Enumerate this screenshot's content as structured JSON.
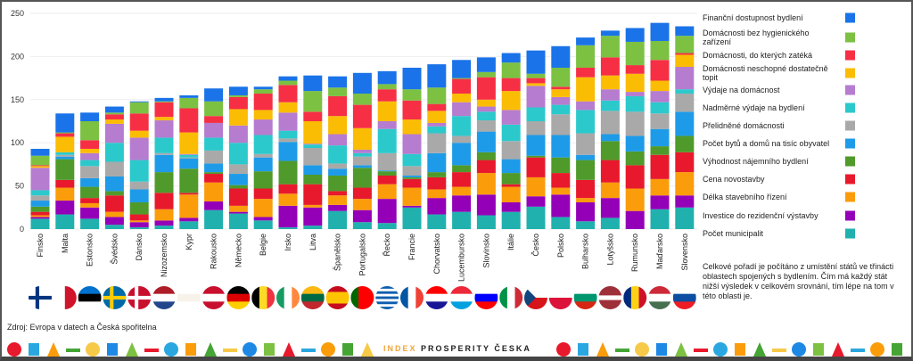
{
  "chart_data": {
    "type": "bar",
    "stacked": true,
    "title": "",
    "xlabel": "",
    "ylabel": "",
    "ylim": [
      0,
      250
    ],
    "yticks": [
      0,
      50,
      100,
      150,
      200,
      250
    ],
    "grid": true,
    "legend_position": "right",
    "categories": [
      "Finsko",
      "Malta",
      "Estonsko",
      "Švédsko",
      "Dánsko",
      "Nizozemsko",
      "Kypr",
      "Rakousko",
      "Německo",
      "Belgie",
      "Irsko",
      "Litva",
      "Španělsko",
      "Portugalsko",
      "Řecko",
      "Francie",
      "Chorvatsko",
      "Lucembursko",
      "Slovinsko",
      "Itálie",
      "Česko",
      "Polsko",
      "Bulharsko",
      "Lotyšsko",
      "Rumunsko",
      "Maďarsko",
      "Slovensko"
    ],
    "series": [
      {
        "name": "Počet municipalit",
        "color": "#20b1ae",
        "values": [
          12,
          17,
          12,
          5,
          2,
          4,
          9,
          22,
          18,
          10,
          2,
          4,
          21,
          8,
          7,
          25,
          17,
          20,
          16,
          20,
          26,
          14,
          9,
          13,
          0,
          23,
          25
        ]
      },
      {
        "name": "Investice do rezidenční výstavby",
        "color": "#9400b8",
        "values": [
          2,
          16,
          13,
          9,
          6,
          6,
          4,
          10,
          2,
          4,
          25,
          21,
          7,
          14,
          28,
          2,
          19,
          19,
          24,
          11,
          12,
          26,
          22,
          23,
          21,
          16,
          14
        ]
      },
      {
        "name": "Délka stavebního řízení",
        "color": "#fb9c0b",
        "values": [
          2,
          15,
          5,
          6,
          2,
          13,
          27,
          22,
          7,
          21,
          14,
          3,
          11,
          13,
          17,
          21,
          10,
          10,
          25,
          18,
          22,
          8,
          5,
          18,
          26,
          19,
          27
        ]
      },
      {
        "name": "Cena novostavby",
        "color": "#e8192c",
        "values": [
          4,
          9,
          6,
          19,
          7,
          19,
          2,
          10,
          20,
          12,
          11,
          24,
          5,
          13,
          10,
          10,
          14,
          17,
          15,
          3,
          23,
          17,
          21,
          26,
          27,
          28,
          23
        ]
      },
      {
        "name": "Výhodnost nájemního bydlení",
        "color": "#4f9a2a",
        "values": [
          6,
          24,
          13,
          5,
          14,
          24,
          28,
          2,
          4,
          20,
          27,
          11,
          18,
          23,
          5,
          2,
          6,
          8,
          9,
          13,
          2,
          18,
          23,
          22,
          16,
          10,
          19
        ]
      },
      {
        "name": "Počet bytů a domů na tisíc obyvatel",
        "color": "#1e9be8",
        "values": [
          7,
          3,
          10,
          17,
          15,
          20,
          12,
          10,
          13,
          16,
          22,
          11,
          8,
          3,
          1,
          2,
          22,
          26,
          24,
          16,
          24,
          26,
          6,
          8,
          18,
          20,
          28
        ]
      },
      {
        "name": "Přelidněné domácnosti",
        "color": "#a9a9a9",
        "values": [
          6,
          2,
          14,
          17,
          9,
          2,
          1,
          15,
          11,
          4,
          4,
          20,
          6,
          10,
          20,
          11,
          23,
          8,
          13,
          21,
          16,
          24,
          25,
          27,
          28,
          18,
          21
        ]
      },
      {
        "name": "Nadměrné výdaje na bydlení",
        "color": "#2bc9cc",
        "values": [
          6,
          3,
          7,
          22,
          25,
          18,
          3,
          15,
          25,
          22,
          9,
          4,
          21,
          4,
          28,
          14,
          8,
          23,
          10,
          19,
          16,
          11,
          27,
          12,
          18,
          13,
          5
        ]
      },
      {
        "name": "Výdaje na domácnost",
        "color": "#b57cd0",
        "values": [
          26,
          0,
          8,
          22,
          26,
          20,
          1,
          17,
          20,
          18,
          21,
          1,
          13,
          4,
          9,
          23,
          4,
          16,
          6,
          17,
          25,
          9,
          10,
          13,
          5,
          13,
          26
        ]
      },
      {
        "name": "Domácnosti neschopné dostatečně topit",
        "color": "#fbbc04",
        "values": [
          2,
          18,
          5,
          5,
          8,
          4,
          25,
          0,
          19,
          11,
          12,
          26,
          21,
          25,
          23,
          17,
          14,
          10,
          8,
          22,
          3,
          9,
          28,
          16,
          21,
          12,
          14
        ]
      },
      {
        "name": "Domácnosti, do kterých zatéká",
        "color": "#f62f45",
        "values": [
          1,
          4,
          10,
          6,
          20,
          17,
          28,
          8,
          14,
          19,
          20,
          11,
          23,
          27,
          14,
          22,
          8,
          17,
          26,
          15,
          6,
          3,
          11,
          21,
          10,
          24,
          2
        ]
      },
      {
        "name": "Domácnosti bez hygienického zařízení",
        "color": "#7cc142",
        "values": [
          11,
          1,
          22,
          2,
          13,
          1,
          12,
          17,
          2,
          5,
          5,
          24,
          10,
          13,
          6,
          13,
          19,
          1,
          6,
          18,
          5,
          22,
          26,
          25,
          27,
          22,
          20
        ]
      },
      {
        "name": "Finanční dostupnost bydlení",
        "color": "#1a73e8",
        "values": [
          8,
          22,
          10,
          7,
          1,
          4,
          3,
          15,
          10,
          3,
          5,
          18,
          13,
          24,
          15,
          25,
          27,
          21,
          17,
          11,
          27,
          25,
          9,
          6,
          16,
          21,
          11
        ]
      }
    ]
  },
  "flags": [
    {
      "type": "cross",
      "colors": [
        "#ffffff",
        "#003580"
      ]
    },
    {
      "type": "v",
      "colors": [
        "#ffffff",
        "#cf142b"
      ]
    },
    {
      "type": "h",
      "colors": [
        "#0072ce",
        "#000000",
        "#ffffff"
      ]
    },
    {
      "type": "cross",
      "colors": [
        "#006aa7",
        "#fecc00"
      ]
    },
    {
      "type": "cross",
      "colors": [
        "#c8102e",
        "#ffffff"
      ]
    },
    {
      "type": "h",
      "colors": [
        "#ae1c28",
        "#ffffff",
        "#21468b"
      ]
    },
    {
      "type": "h",
      "colors": [
        "#ffffff",
        "#f7f3ea",
        "#ffffff"
      ]
    },
    {
      "type": "h",
      "colors": [
        "#c8102e",
        "#ffffff",
        "#c8102e"
      ]
    },
    {
      "type": "h",
      "colors": [
        "#000000",
        "#dd0000",
        "#ffce00"
      ]
    },
    {
      "type": "v",
      "colors": [
        "#000000",
        "#fdda24",
        "#ef3340"
      ]
    },
    {
      "type": "v",
      "colors": [
        "#169b62",
        "#ffffff",
        "#ff883e"
      ]
    },
    {
      "type": "h",
      "colors": [
        "#fdb913",
        "#006a44",
        "#c1272d"
      ]
    },
    {
      "type": "h",
      "colors": [
        "#c60b1e",
        "#ffc400",
        "#ffc400",
        "#c60b1e"
      ]
    },
    {
      "type": "v",
      "colors": [
        "#006600",
        "#ff0000",
        "#ff0000"
      ]
    },
    {
      "type": "h",
      "colors": [
        "#0d5eaf",
        "#ffffff",
        "#0d5eaf",
        "#ffffff",
        "#0d5eaf",
        "#ffffff",
        "#0d5eaf",
        "#ffffff",
        "#0d5eaf"
      ]
    },
    {
      "type": "v",
      "colors": [
        "#0055a4",
        "#ffffff",
        "#ef4135"
      ]
    },
    {
      "type": "h",
      "colors": [
        "#ff0000",
        "#ffffff",
        "#171796"
      ]
    },
    {
      "type": "h",
      "colors": [
        "#ed2939",
        "#ffffff",
        "#00a1de"
      ]
    },
    {
      "type": "h",
      "colors": [
        "#ffffff",
        "#0000ff",
        "#ff0000"
      ]
    },
    {
      "type": "v",
      "colors": [
        "#009246",
        "#ffffff",
        "#ce2b37"
      ]
    },
    {
      "type": "czech",
      "colors": [
        "#ffffff",
        "#d7141a",
        "#11457e"
      ]
    },
    {
      "type": "h",
      "colors": [
        "#ffffff",
        "#dc143c"
      ]
    },
    {
      "type": "h",
      "colors": [
        "#ffffff",
        "#00966e",
        "#d62612"
      ]
    },
    {
      "type": "h",
      "colors": [
        "#9e3039",
        "#9e3039",
        "#ffffff",
        "#9e3039",
        "#9e3039"
      ]
    },
    {
      "type": "v",
      "colors": [
        "#002b7f",
        "#fcd116",
        "#ce1126"
      ]
    },
    {
      "type": "h",
      "colors": [
        "#ce2939",
        "#ffffff",
        "#477050"
      ]
    },
    {
      "type": "h",
      "colors": [
        "#ffffff",
        "#0b4ea2",
        "#ee1c25"
      ]
    }
  ],
  "note": "Celkové pořadí je počítáno z umístění států ve třinácti oblastech spojených s bydlením. Čím má každý stát nižší výsledek v celkovém srovnání, tím lépe na tom v této oblasti je.",
  "source": "Zdroj: Evropa v datech a Česká spořitelna",
  "logo": {
    "index": "INDEX",
    "rest": "PROSPERITY ČESKA"
  },
  "strip_colors": [
    "#e8192c",
    "#2aa7e0",
    "#fb9c0b",
    "#45a534",
    "#f7c948",
    "#1e88e5",
    "#7cc142"
  ]
}
